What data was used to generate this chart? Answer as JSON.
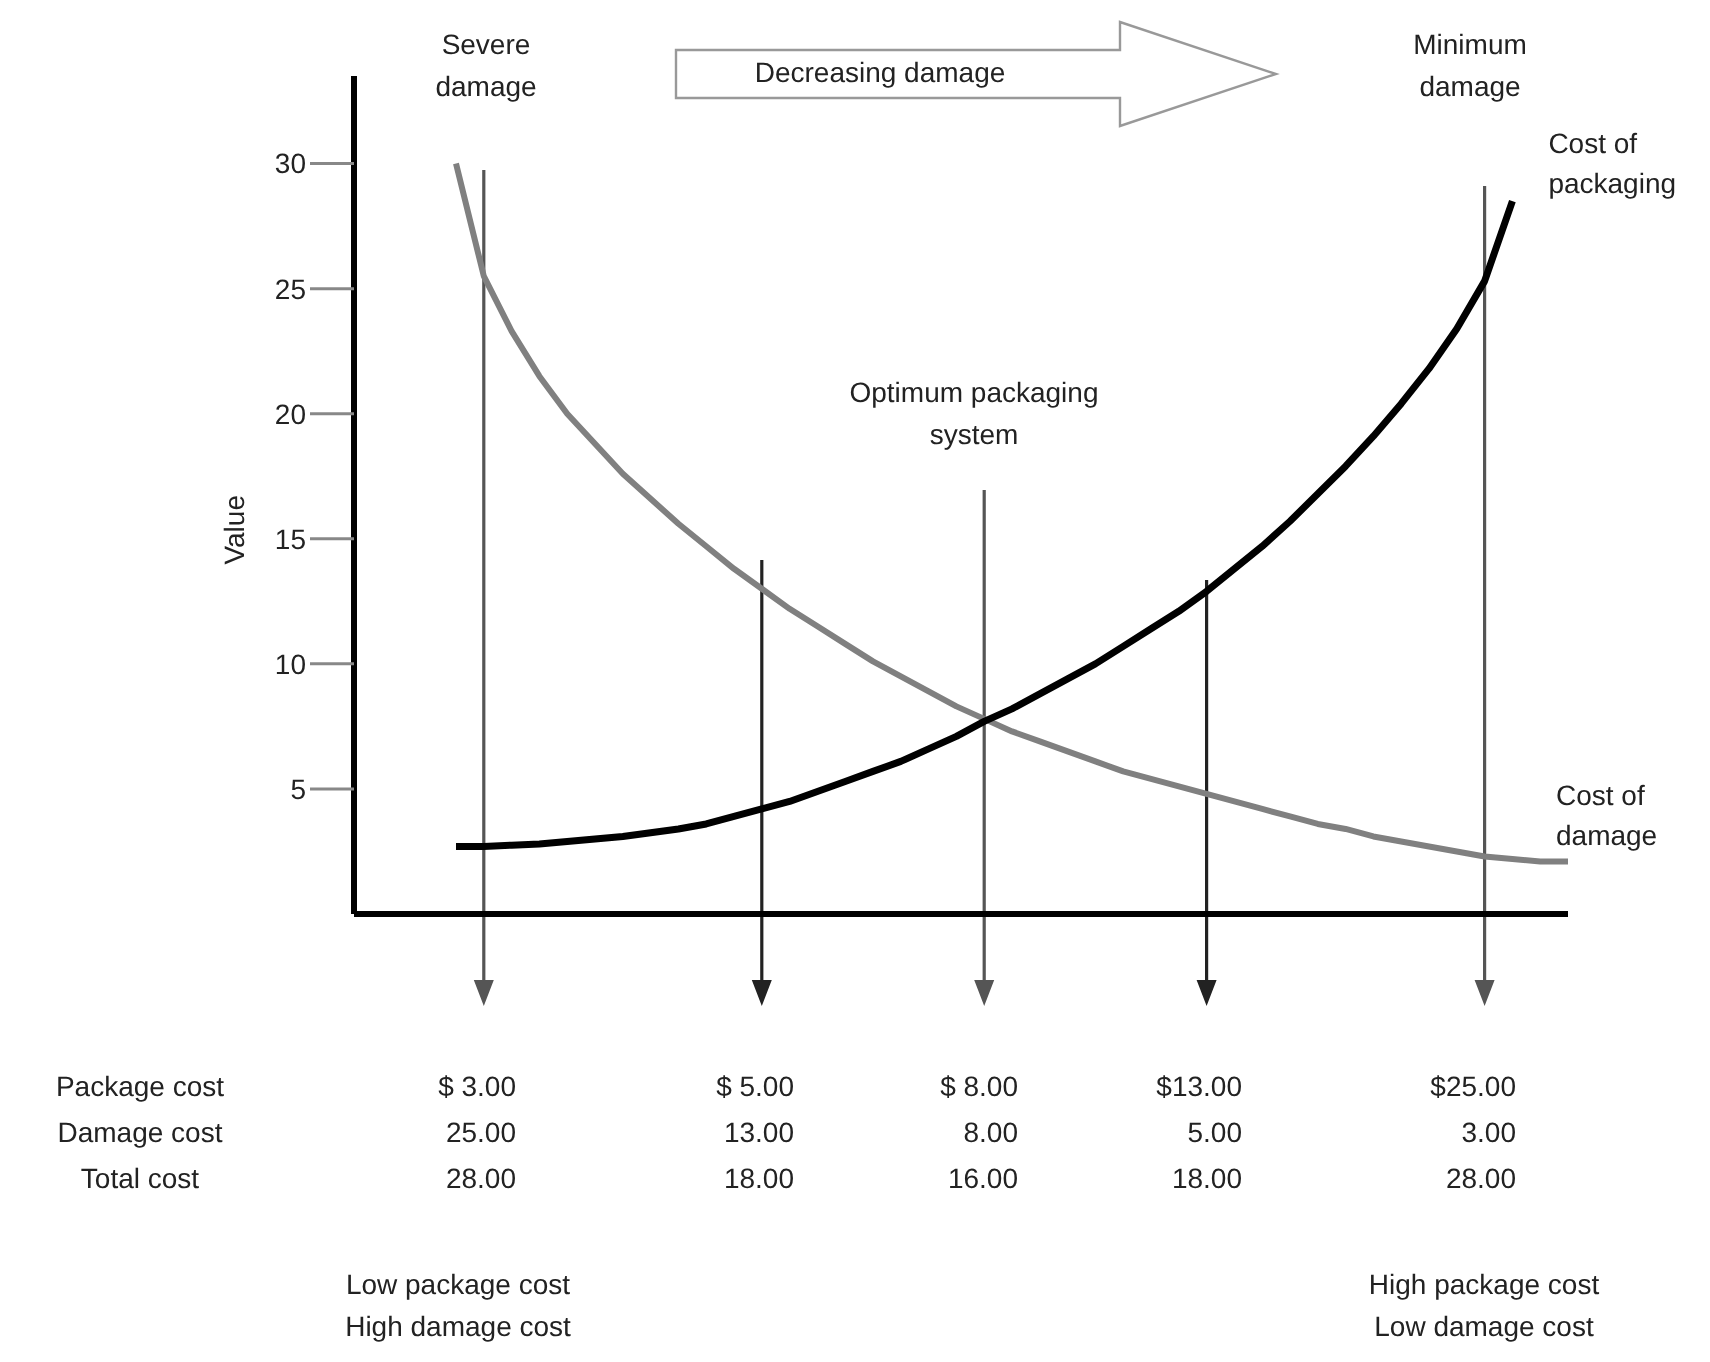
{
  "chart_data": {
    "type": "line",
    "ylabel": "Value",
    "ylim": [
      0,
      33.5
    ],
    "yticks": [
      5,
      10,
      15,
      20,
      25,
      30
    ],
    "tick_labels": "y",
    "marker": "none",
    "categories": [
      null,
      null,
      null,
      null,
      null,
      null,
      null,
      null,
      null,
      null,
      null,
      null,
      null,
      null,
      null,
      null,
      null,
      null,
      null,
      null,
      null,
      null,
      null,
      null,
      null,
      null,
      null,
      null,
      null,
      null,
      null,
      null,
      null,
      null,
      null,
      null,
      null,
      null,
      null,
      null,
      null
    ],
    "series": [
      {
        "name": "Cost of damage",
        "color": "#808080",
        "values": [
          30,
          25.5,
          23.3,
          21.5,
          20,
          18.8,
          17.6,
          16.6,
          15.6,
          14.7,
          13.8,
          13,
          12.2,
          11.5,
          10.8,
          10.1,
          9.5,
          8.9,
          8.3,
          7.8,
          7.3,
          6.9,
          6.5,
          6.1,
          5.7,
          5.4,
          5.1,
          4.8,
          4.5,
          4.2,
          3.9,
          3.6,
          3.4,
          3.1,
          2.9,
          2.7,
          2.5,
          2.3,
          2.2,
          2.1,
          2.1
        ]
      },
      {
        "name": "Cost of packaging",
        "color": "#000000",
        "values": [
          2.7,
          2.7,
          2.75,
          2.8,
          2.9,
          3.0,
          3.1,
          3.25,
          3.4,
          3.6,
          3.9,
          4.2,
          4.5,
          4.9,
          5.3,
          5.7,
          6.1,
          6.6,
          7.1,
          7.7,
          8.2,
          8.8,
          9.4,
          10.0,
          10.7,
          11.4,
          12.1,
          12.9,
          13.8,
          14.7,
          15.7,
          16.8,
          17.9,
          19.1,
          20.4,
          21.8,
          23.4,
          25.3,
          28.5,
          null,
          null
        ]
      }
    ],
    "annotations": [
      "Severe damage",
      "Decreasing damage",
      "Minimum damage",
      "Optimum packaging system",
      "Package cost",
      "$ 3.00",
      "$ 5.00",
      "$ 8.00",
      "$13.00",
      "$25.00",
      "Damage cost",
      "25.00",
      "13.00",
      "8.00",
      "5.00",
      "3.00",
      "Total cost",
      "28.00",
      "18.00",
      "16.00",
      "18.00",
      "28.00",
      "Low package cost High damage cost",
      "High package cost Low damage cost"
    ]
  }
}
